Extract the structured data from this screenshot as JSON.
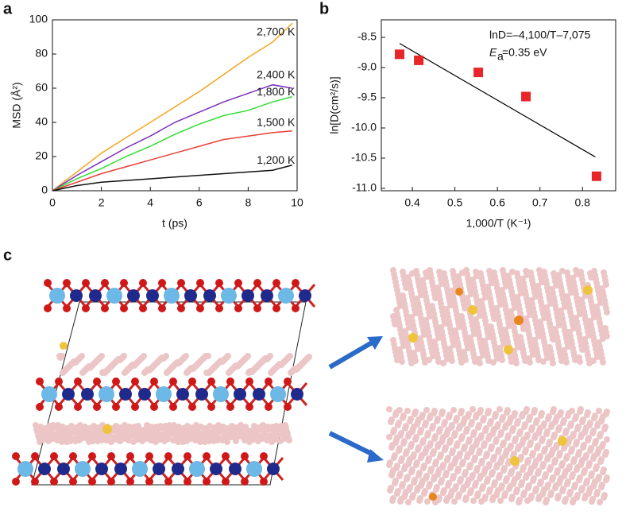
{
  "chart_data": [
    {
      "type": "line",
      "panel": "a",
      "xlabel": "t (ps)",
      "ylabel": "MSD (Å²)",
      "x": [
        0,
        1,
        2,
        3,
        4,
        5,
        6,
        7,
        8,
        9,
        9.8
      ],
      "series": [
        {
          "name": "2,700 K",
          "color": "#f5a51e",
          "values": [
            0,
            11,
            22,
            31,
            40,
            49,
            58,
            68,
            78,
            87,
            98
          ]
        },
        {
          "name": "2,400 K",
          "color": "#7b2fbe",
          "values": [
            0,
            9,
            17,
            25,
            32,
            40,
            46,
            52,
            57,
            62,
            60
          ]
        },
        {
          "name": "1,800 K",
          "color": "#33dd33",
          "values": [
            0,
            7,
            13,
            20,
            26,
            33,
            39,
            44,
            47,
            52,
            55
          ]
        },
        {
          "name": "1,500 K",
          "color": "#e8403a",
          "values": [
            0,
            5,
            10,
            14,
            18,
            22,
            26,
            30,
            32,
            34,
            35
          ]
        },
        {
          "name": "1,200 K",
          "color": "#111111",
          "values": [
            0,
            3,
            5,
            6,
            7,
            8,
            9,
            10,
            11,
            12,
            15
          ]
        }
      ],
      "xlim": [
        0,
        10
      ],
      "xticks": [
        0,
        2,
        4,
        6,
        8,
        10
      ],
      "ylim": [
        0,
        100
      ],
      "yticks": [
        0,
        20,
        40,
        60,
        80,
        100
      ]
    },
    {
      "type": "scatter",
      "panel": "b",
      "xlabel": "1,000/T (K⁻¹)",
      "ylabel": "ln[D(cm²/s)]",
      "annotation": "lnD=–4,100/T–7,075",
      "annotation2": {
        "symbol": "E",
        "subscript": "a",
        "text": "=0.35 eV"
      },
      "series": [
        {
          "color": "#e8262a",
          "x": [
            0.37,
            0.415,
            0.555,
            0.667,
            0.833
          ],
          "values": [
            -8.78,
            -8.88,
            -9.08,
            -9.48,
            -10.8
          ]
        }
      ],
      "fit": {
        "color": "#000000",
        "x": [
          0.37,
          0.83
        ],
        "values": [
          -8.6,
          -10.48
        ]
      },
      "xlim": [
        0.327,
        0.878
      ],
      "xticks": [
        0.4,
        0.5,
        0.6,
        0.7,
        0.8
      ],
      "ylim": [
        -11.04,
        -8.21
      ],
      "yticks": [
        -8.5,
        {
          "value": -9,
          "label": "-9.0"
        },
        -9.5,
        {
          "value": -10,
          "label": "-10.0"
        },
        -10.5,
        {
          "value": -11,
          "label": "-11.0"
        }
      ]
    }
  ],
  "panel_c": {
    "label": "c"
  }
}
